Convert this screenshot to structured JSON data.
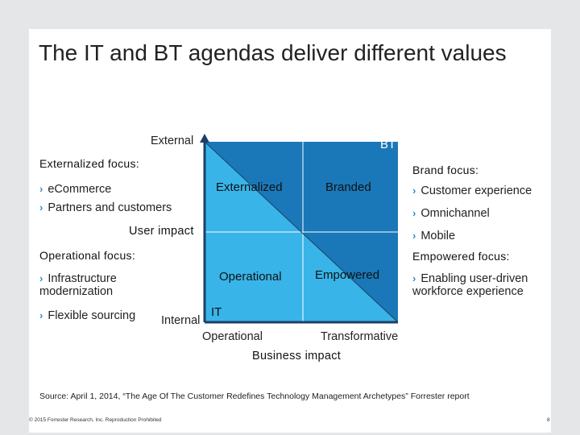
{
  "slide": {
    "title": "The IT and BT agendas deliver different values"
  },
  "matrix": {
    "y_top_label": "External",
    "y_bottom_label": "Internal",
    "y_axis_title": "User impact",
    "x_left_label": "Operational",
    "x_right_label": "Transformative",
    "x_axis_title": "Business impact",
    "bt_label": "BT",
    "it_label": "IT",
    "quadrants": {
      "top_left": "Externalized",
      "top_right": "Branded",
      "bottom_left": "Operational",
      "bottom_right": "Empowered"
    },
    "colors": {
      "dark_blue": "#1a78b8",
      "light_blue": "#38b4e8",
      "axis": "#1d3f66"
    }
  },
  "left_panel": {
    "externalized_heading": "Externalized focus:",
    "externalized_items": [
      "eCommerce",
      "Partners and customers"
    ],
    "operational_heading": "Operational focus:",
    "operational_items": [
      "Infrastructure modernization",
      "Flexible sourcing"
    ]
  },
  "right_panel": {
    "brand_heading": "Brand focus:",
    "brand_items": [
      "Customer experience",
      "Omnichannel",
      "Mobile"
    ],
    "empowered_heading": "Empowered focus:",
    "empowered_items": [
      "Enabling user-driven workforce experience"
    ]
  },
  "footer": {
    "source": "Source: April 1, 2014, “The Age Of The Customer Redefines Technology Management Archetypes” Forrester report",
    "copyright": "© 2015 Forrester Research, Inc. Reproduction Prohibited",
    "page_number": "8"
  },
  "icons": {
    "bullet": "chevron-right-icon"
  }
}
